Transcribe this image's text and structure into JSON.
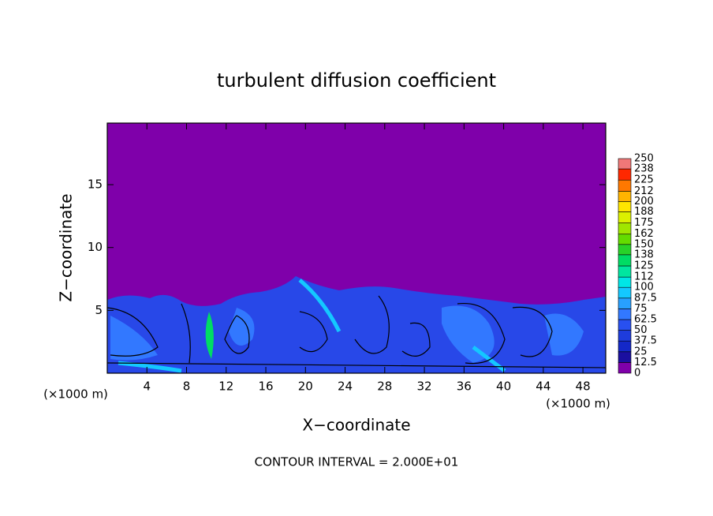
{
  "chart_data": {
    "type": "contour",
    "title": "turbulent diffusion coefficient",
    "x_label": "X−coordinate",
    "y_label": "Z−coordinate",
    "x_unit_left": "(×1000 m)",
    "x_unit_right": "(×1000 m)",
    "footnote": "CONTOUR INTERVAL = 2.000E+01",
    "xlim": [
      0,
      50.3
    ],
    "xticks": [
      4,
      8,
      12,
      16,
      20,
      24,
      28,
      32,
      36,
      40,
      44,
      48
    ],
    "ylim": [
      0,
      19.9
    ],
    "yticks": [
      5,
      10,
      15
    ],
    "colorbar": {
      "levels": [
        0,
        12.5,
        25,
        37.5,
        50,
        62.5,
        75,
        87.5,
        100,
        112,
        125,
        138,
        150,
        162,
        175,
        188,
        200,
        212,
        225,
        238,
        250
      ],
      "colors": [
        "#7f00aa",
        "#1a0fa0",
        "#1428c8",
        "#1e3cdc",
        "#2850f0",
        "#3278ff",
        "#28a0ff",
        "#14c8ff",
        "#00e6e6",
        "#00e6a0",
        "#00dc64",
        "#28d228",
        "#64dc00",
        "#a0e600",
        "#dcf000",
        "#ffe600",
        "#ffb400",
        "#ff7800",
        "#ff2800",
        "#f07878"
      ]
    }
  }
}
